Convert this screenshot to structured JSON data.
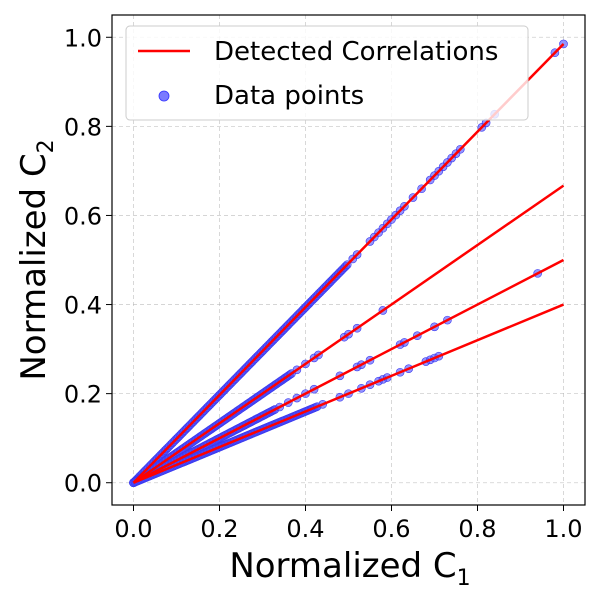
{
  "chart_data": {
    "type": "scatter",
    "xlabel": "Normalized C",
    "xlabel_sub": "1",
    "ylabel": "Normalized C",
    "ylabel_sub": "2",
    "xlim": [
      -0.05,
      1.05
    ],
    "ylim": [
      -0.05,
      1.05
    ],
    "xticks": [
      0.0,
      0.2,
      0.4,
      0.6,
      0.8,
      1.0
    ],
    "yticks": [
      0.0,
      0.2,
      0.4,
      0.6,
      0.8,
      1.0
    ],
    "xtick_labels": [
      "0.0",
      "0.2",
      "0.4",
      "0.6",
      "0.8",
      "1.0"
    ],
    "ytick_labels": [
      "0.0",
      "0.2",
      "0.4",
      "0.6",
      "0.8",
      "1.0"
    ],
    "grid": true,
    "legend_position": "top-left",
    "legend": [
      {
        "label": "Detected Correlations",
        "kind": "line",
        "color": "#ff0000"
      },
      {
        "label": "Data points",
        "kind": "marker",
        "color": "#4d4dff"
      }
    ],
    "lines": [
      {
        "name": "Detected Correlations",
        "slope": 0.985,
        "x": [
          0,
          1.0
        ]
      },
      {
        "name": "Detected Correlations",
        "slope": 0.667,
        "x": [
          0,
          1.0
        ]
      },
      {
        "name": "Detected Correlations",
        "slope": 0.5,
        "x": [
          0,
          1.0
        ]
      },
      {
        "name": "Detected Correlations",
        "slope": 0.4,
        "x": [
          0,
          1.0
        ]
      }
    ],
    "series": [
      {
        "name": "Data points",
        "color": "#4d4dff",
        "slope": 0.985,
        "x_dense_max": 0.5,
        "x_sparse": [
          0.51,
          0.52,
          0.55,
          0.56,
          0.57,
          0.58,
          0.59,
          0.6,
          0.61,
          0.62,
          0.63,
          0.65,
          0.67,
          0.69,
          0.7,
          0.71,
          0.72,
          0.73,
          0.74,
          0.75,
          0.76,
          0.81,
          0.82,
          0.84,
          0.98,
          1.0
        ]
      },
      {
        "name": "Data points",
        "color": "#4d4dff",
        "slope": 0.667,
        "x_dense_max": 0.37,
        "x_sparse": [
          0.38,
          0.4,
          0.42,
          0.43,
          0.49,
          0.5,
          0.52,
          0.58
        ]
      },
      {
        "name": "Data points",
        "color": "#4d4dff",
        "slope": 0.5,
        "x_dense_max": 0.33,
        "x_sparse": [
          0.34,
          0.36,
          0.38,
          0.4,
          0.42,
          0.48,
          0.52,
          0.53,
          0.55,
          0.62,
          0.63,
          0.66,
          0.7,
          0.73,
          0.94
        ]
      },
      {
        "name": "Data points",
        "color": "#4d4dff",
        "slope": 0.4,
        "x_dense_max": 0.43,
        "x_sparse": [
          0.44,
          0.48,
          0.5,
          0.53,
          0.55,
          0.57,
          0.58,
          0.59,
          0.62,
          0.64,
          0.68,
          0.69,
          0.7,
          0.71
        ]
      }
    ]
  }
}
